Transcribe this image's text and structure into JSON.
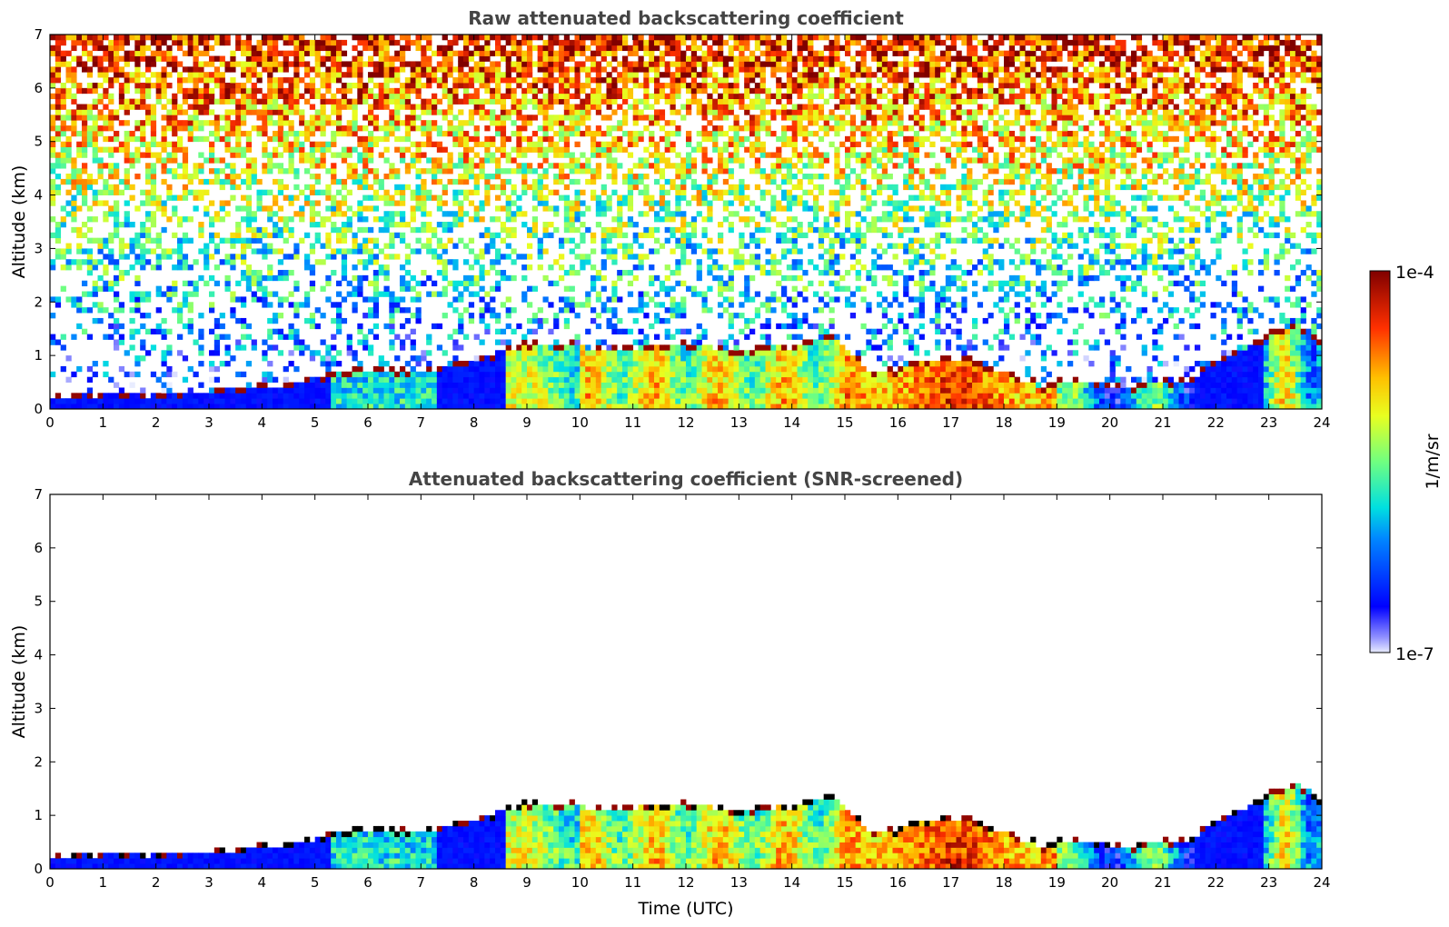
{
  "chart_data": [
    {
      "type": "heatmap",
      "title": "Raw attenuated backscattering coefficient",
      "xlabel": "",
      "ylabel": "Altitude (km)",
      "xlim": [
        0,
        24
      ],
      "ylim": [
        0,
        7
      ],
      "x_ticks": [
        "0",
        "1",
        "2",
        "3",
        "4",
        "5",
        "6",
        "7",
        "8",
        "9",
        "10",
        "11",
        "12",
        "13",
        "14",
        "15",
        "16",
        "17",
        "18",
        "19",
        "20",
        "21",
        "22",
        "23",
        "24"
      ],
      "y_ticks": [
        "0",
        "1",
        "2",
        "3",
        "4",
        "5",
        "6",
        "7"
      ],
      "screened": false
    },
    {
      "type": "heatmap",
      "title": "Attenuated backscattering coefficient (SNR-screened)",
      "xlabel": "Time (UTC)",
      "ylabel": "Altitude (km)",
      "xlim": [
        0,
        24
      ],
      "ylim": [
        0,
        7
      ],
      "x_ticks": [
        "0",
        "1",
        "2",
        "3",
        "4",
        "5",
        "6",
        "7",
        "8",
        "9",
        "10",
        "11",
        "12",
        "13",
        "14",
        "15",
        "16",
        "17",
        "18",
        "19",
        "20",
        "21",
        "22",
        "23",
        "24"
      ],
      "y_ticks": [
        "0",
        "1",
        "2",
        "3",
        "4",
        "5",
        "6",
        "7"
      ],
      "screened": true
    }
  ],
  "colorbar": {
    "label": "1/m/sr",
    "max_label": "1e-4",
    "min_label": "1e-7",
    "log_range": [
      -7,
      -4
    ]
  },
  "profile": {
    "description_free": true,
    "layer_top_km": [
      [
        0,
        0.25
      ],
      [
        1,
        0.27
      ],
      [
        2,
        0.3
      ],
      [
        3,
        0.32
      ],
      [
        4,
        0.42
      ],
      [
        5,
        0.55
      ],
      [
        5.4,
        0.7
      ],
      [
        6,
        0.75
      ],
      [
        7,
        0.72
      ],
      [
        7.5,
        0.8
      ],
      [
        8,
        0.9
      ],
      [
        8.6,
        1.1
      ],
      [
        9,
        1.25
      ],
      [
        10,
        1.2
      ],
      [
        11,
        1.15
      ],
      [
        12,
        1.25
      ],
      [
        13,
        1.1
      ],
      [
        14,
        1.2
      ],
      [
        14.8,
        1.35
      ],
      [
        15,
        1.15
      ],
      [
        15.5,
        0.7
      ],
      [
        16,
        0.75
      ],
      [
        16.5,
        0.9
      ],
      [
        17,
        1.0
      ],
      [
        17.5,
        0.9
      ],
      [
        18,
        0.7
      ],
      [
        18.8,
        0.4
      ],
      [
        19,
        0.6
      ],
      [
        19.5,
        0.55
      ],
      [
        20,
        0.45
      ],
      [
        20.5,
        0.45
      ],
      [
        21,
        0.55
      ],
      [
        21.5,
        0.55
      ],
      [
        22,
        0.9
      ],
      [
        22.5,
        1.1
      ],
      [
        23,
        1.4
      ],
      [
        23.5,
        1.6
      ],
      [
        24,
        1.3
      ]
    ]
  }
}
